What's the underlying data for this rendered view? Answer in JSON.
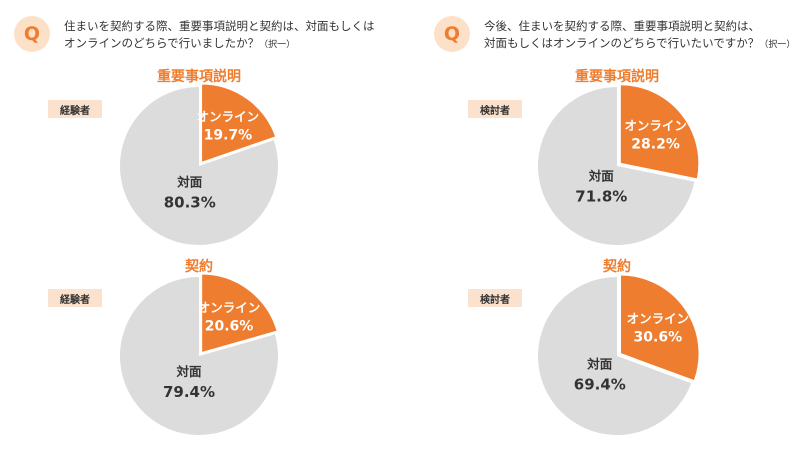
{
  "colors": {
    "online": "#ee7d2f",
    "face": "#dcdcdc",
    "accent": "#ee7d2f",
    "badge_bg": "#fce0c8",
    "tag_bg": "#fbe2cf"
  },
  "badge_icon": "Q",
  "questions": [
    {
      "line1": "住まいを契約する際、重要事項説明と契約は、対面もしくは",
      "line2": "オンラインのどちらで行いましたか？",
      "note": "（択一）"
    },
    {
      "line1": "今後、住まいを契約する際、重要事項説明と契約は、",
      "line2": "対面もしくはオンラインのどちらで行いたいですか？",
      "note": "（択一）"
    }
  ],
  "chart_data": [
    {
      "type": "pie",
      "title": "重要事項説明",
      "group": "経験者",
      "slices": [
        {
          "label": "オンライン",
          "value": 19.7,
          "display": "19.7%"
        },
        {
          "label": "対面",
          "value": 80.3,
          "display": "80.3%"
        }
      ]
    },
    {
      "type": "pie",
      "title": "契約",
      "group": "経験者",
      "slices": [
        {
          "label": "オンライン",
          "value": 20.6,
          "display": "20.6%"
        },
        {
          "label": "対面",
          "value": 79.4,
          "display": "79.4%"
        }
      ]
    },
    {
      "type": "pie",
      "title": "重要事項説明",
      "group": "検討者",
      "slices": [
        {
          "label": "オンライン",
          "value": 28.2,
          "display": "28.2%"
        },
        {
          "label": "対面",
          "value": 71.8,
          "display": "71.8%"
        }
      ]
    },
    {
      "type": "pie",
      "title": "契約",
      "group": "検討者",
      "slices": [
        {
          "label": "オンライン",
          "value": 30.6,
          "display": "30.6%"
        },
        {
          "label": "対面",
          "value": 69.4,
          "display": "69.4%"
        }
      ]
    }
  ]
}
